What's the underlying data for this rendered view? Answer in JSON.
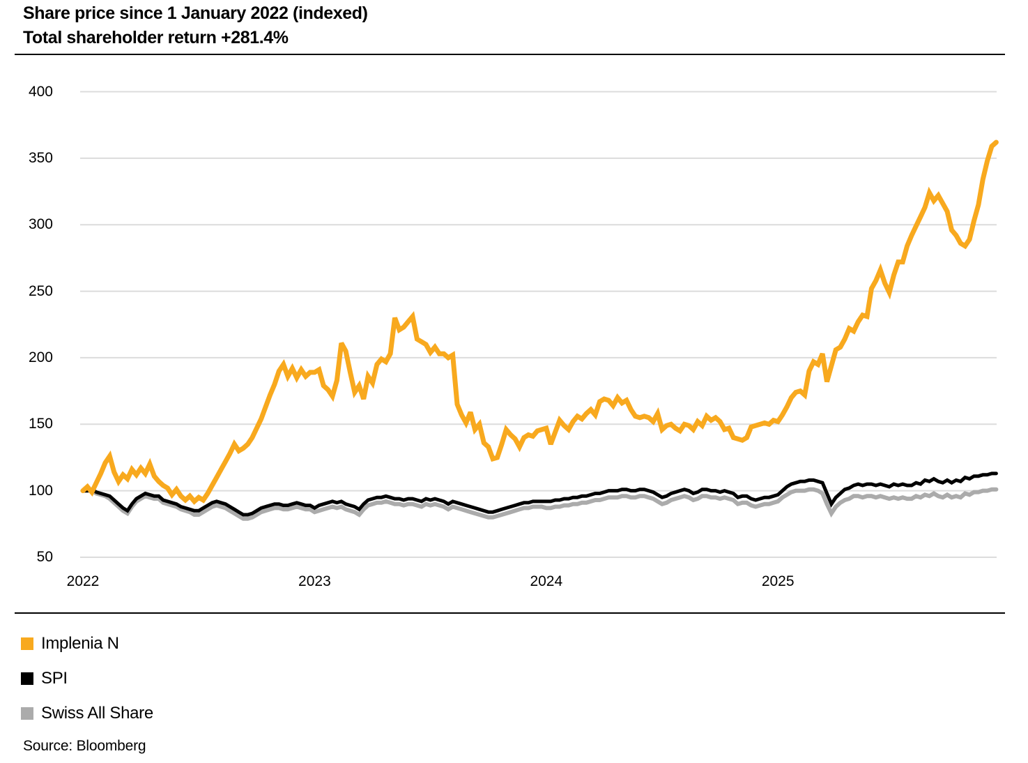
{
  "header": {
    "title_line1": "Share price since 1 January 2022 (indexed)",
    "title_line2": "Total shareholder return +281.4%"
  },
  "legend": {
    "items": [
      {
        "label": "Implenia N",
        "color": "#F8A91E"
      },
      {
        "label": "SPI",
        "color": "#000000"
      },
      {
        "label": "Swiss All Share",
        "color": "#ABABAB"
      }
    ]
  },
  "source": {
    "label": "Source: Bloomberg"
  },
  "chart_data": {
    "type": "line",
    "title": "Share price since 1 January 2022 (indexed)",
    "subtitle": "Total shareholder return +281.4%",
    "xlabel": "",
    "ylabel": "",
    "x_ticks": [
      "2022",
      "2023",
      "2024",
      "2025"
    ],
    "y_ticks": [
      400,
      350,
      300,
      250,
      200,
      150,
      100,
      50
    ],
    "ylim": [
      50,
      400
    ],
    "x_start_year": 2022,
    "points_per_year": 52,
    "grid": "horizontal",
    "gridline_color": "#DCDCDC",
    "legend_position": "bottom-left",
    "series": [
      {
        "name": "Implenia N",
        "color": "#F8A91E",
        "stroke_width": 7,
        "values": [
          100,
          103,
          99,
          106,
          113,
          121,
          126,
          114,
          107,
          112,
          109,
          116,
          112,
          117,
          113,
          120,
          111,
          107,
          104,
          102,
          97,
          101,
          96,
          93,
          96,
          92,
          95,
          93,
          98,
          104,
          110,
          116,
          122,
          128,
          135,
          130,
          132,
          135,
          140,
          147,
          154,
          163,
          172,
          180,
          190,
          195,
          186,
          192,
          185,
          191,
          186,
          189,
          189,
          191,
          179,
          176,
          171,
          183,
          211,
          205,
          189,
          174,
          179,
          169,
          186,
          181,
          195,
          199,
          197,
          203,
          230,
          221,
          223,
          227,
          231,
          214,
          212,
          210,
          204,
          208,
          203,
          203,
          200,
          202,
          165,
          157,
          151,
          159,
          146,
          150,
          136,
          133,
          124,
          125,
          135,
          146,
          142,
          139,
          133,
          140,
          142,
          141,
          145,
          146,
          147,
          135,
          144,
          153,
          149,
          146,
          152,
          156,
          154,
          158,
          161,
          157,
          167,
          169,
          168,
          164,
          170,
          166,
          168,
          161,
          156,
          155,
          156,
          155,
          152,
          158,
          146,
          149,
          150,
          147,
          145,
          150,
          149,
          146,
          152,
          149,
          156,
          153,
          155,
          152,
          146,
          147,
          140,
          139,
          138,
          140,
          148,
          149,
          150,
          151,
          150,
          153,
          152,
          157,
          163,
          170,
          174,
          175,
          172,
          190,
          197,
          195,
          203,
          182,
          194,
          206,
          208,
          214,
          222,
          220,
          227,
          232,
          231,
          252,
          258,
          266,
          256,
          249,
          262,
          272,
          272,
          284,
          292,
          299,
          306,
          313,
          324,
          318,
          322,
          316,
          310,
          296,
          292,
          286,
          284,
          289,
          303,
          315,
          334,
          348,
          359,
          362
        ]
      },
      {
        "name": "SPI",
        "color": "#000000",
        "stroke_width": 5,
        "values": [
          100,
          100,
          101,
          99,
          98,
          97,
          96,
          93,
          90,
          87,
          85,
          90,
          94,
          96,
          98,
          97,
          96,
          96,
          93,
          92,
          91,
          90,
          88,
          87,
          86,
          85,
          85,
          87,
          89,
          91,
          92,
          91,
          90,
          88,
          86,
          84,
          82,
          82,
          83,
          85,
          87,
          88,
          89,
          90,
          90,
          89,
          89,
          90,
          91,
          90,
          89,
          89,
          87,
          89,
          90,
          91,
          92,
          91,
          92,
          90,
          89,
          88,
          86,
          90,
          93,
          94,
          95,
          95,
          96,
          95,
          94,
          94,
          93,
          94,
          94,
          93,
          92,
          94,
          93,
          94,
          93,
          92,
          90,
          92,
          91,
          90,
          89,
          88,
          87,
          86,
          85,
          84,
          84,
          85,
          86,
          87,
          88,
          89,
          90,
          91,
          91,
          92,
          92,
          92,
          92,
          92,
          93,
          93,
          94,
          94,
          95,
          95,
          96,
          96,
          97,
          98,
          98,
          99,
          100,
          100,
          100,
          101,
          101,
          100,
          100,
          101,
          101,
          100,
          99,
          97,
          95,
          96,
          98,
          99,
          100,
          101,
          100,
          98,
          99,
          101,
          101,
          100,
          100,
          99,
          100,
          99,
          98,
          95,
          96,
          96,
          94,
          93,
          94,
          95,
          95,
          96,
          97,
          100,
          103,
          105,
          106,
          107,
          107,
          108,
          108,
          107,
          106,
          98,
          90,
          95,
          98,
          101,
          102,
          104,
          105,
          104,
          105,
          105,
          104,
          105,
          104,
          103,
          105,
          104,
          105,
          104,
          104,
          106,
          105,
          108,
          107,
          109,
          107,
          106,
          108,
          106,
          108,
          107,
          110,
          109,
          111,
          111,
          112,
          112,
          113,
          113
        ]
      },
      {
        "name": "Swiss All Share",
        "color": "#ABABAB",
        "stroke_width": 6,
        "values": [
          100,
          100,
          100,
          98,
          97,
          96,
          94,
          91,
          88,
          85,
          83,
          88,
          92,
          94,
          96,
          95,
          94,
          94,
          91,
          90,
          89,
          88,
          86,
          85,
          84,
          82,
          82,
          84,
          86,
          88,
          89,
          88,
          87,
          85,
          83,
          81,
          79,
          79,
          80,
          82,
          84,
          85,
          86,
          87,
          87,
          86,
          86,
          87,
          88,
          87,
          86,
          86,
          84,
          85,
          86,
          87,
          88,
          87,
          88,
          86,
          85,
          84,
          82,
          86,
          89,
          90,
          91,
          91,
          92,
          91,
          90,
          90,
          89,
          90,
          90,
          89,
          88,
          90,
          89,
          90,
          89,
          88,
          86,
          88,
          87,
          86,
          85,
          84,
          83,
          82,
          81,
          80,
          80,
          81,
          82,
          83,
          84,
          85,
          86,
          87,
          87,
          88,
          88,
          88,
          87,
          87,
          88,
          88,
          89,
          89,
          90,
          90,
          91,
          91,
          92,
          93,
          93,
          94,
          95,
          95,
          95,
          96,
          96,
          95,
          95,
          96,
          96,
          95,
          94,
          92,
          90,
          91,
          93,
          94,
          95,
          96,
          95,
          93,
          94,
          96,
          96,
          95,
          95,
          94,
          95,
          94,
          93,
          90,
          91,
          91,
          89,
          88,
          89,
          90,
          90,
          91,
          92,
          95,
          97,
          99,
          100,
          100,
          100,
          101,
          101,
          100,
          98,
          90,
          83,
          88,
          91,
          93,
          94,
          96,
          96,
          95,
          96,
          96,
          95,
          96,
          95,
          94,
          95,
          94,
          95,
          94,
          94,
          96,
          95,
          97,
          96,
          98,
          96,
          95,
          97,
          95,
          96,
          95,
          98,
          97,
          99,
          99,
          100,
          100,
          101,
          101
        ]
      }
    ]
  }
}
